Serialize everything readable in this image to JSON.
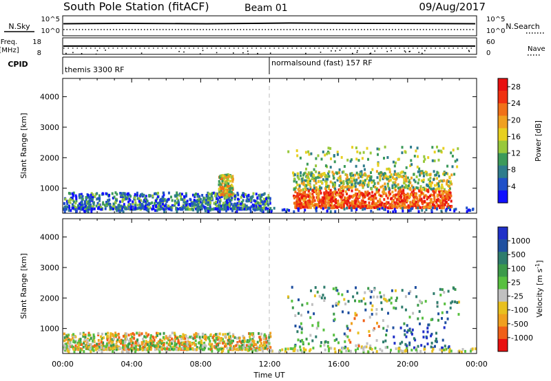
{
  "header": {
    "station": "South Pole Station (fitACF)",
    "beam": "Beam 01",
    "date": "09/Aug/2017"
  },
  "strips": {
    "nsky_label": "N.Sky",
    "nsearch_label": "N.Search",
    "left_ticks": [
      "10^5",
      "10^0"
    ],
    "right_ticks": [
      "10^5",
      "10^0"
    ],
    "freq_label_1": "Freq.",
    "freq_label_2": "[MHz]",
    "freq_ticks": [
      "18",
      "8"
    ],
    "nave_label": "Nave",
    "nave_ticks": [
      "60",
      "0"
    ],
    "cpid_label": "CPID",
    "cpid_1": "themis 3300 RF",
    "cpid_2": "normalsound (fast) 157 RF"
  },
  "chart_data": [
    {
      "type": "heatmap",
      "title": "",
      "ylabel": "Slant Range [km]",
      "xlabel": "",
      "xlim": [
        "00:00",
        "24:00"
      ],
      "ylim": [
        180,
        4600
      ],
      "yticks": [
        "1000",
        "2000",
        "3000",
        "4000"
      ],
      "xticks": [
        "00:00",
        "04:00",
        "08:00",
        "12:00",
        "16:00",
        "20:00",
        "00:00"
      ],
      "colorbar": {
        "label": "Power [dB]",
        "ticks": [
          "4",
          "8",
          "12",
          "16",
          "20",
          "24",
          "28"
        ],
        "range": [
          0,
          30
        ],
        "colors": [
          "#1010ff",
          "#2050c8",
          "#2e7c8c",
          "#3c9a5a",
          "#98c83c",
          "#e8d020",
          "#f0a020",
          "#f07018",
          "#f03010",
          "#e81010"
        ]
      },
      "features": [
        {
          "from": "00:00",
          "to": "12:00",
          "range_km": [
            350,
            900
          ],
          "level": "low-medium"
        },
        {
          "from": "09:00",
          "to": "09:50",
          "range_km": [
            800,
            1500
          ],
          "level": "medium-high"
        },
        {
          "from": "13:20",
          "to": "22:30",
          "range_km": [
            400,
            1600
          ],
          "level": "high"
        }
      ]
    },
    {
      "type": "heatmap",
      "title": "",
      "ylabel": "Slant Range [km]",
      "xlabel": "Time UT",
      "xlim": [
        "00:00",
        "24:00"
      ],
      "ylim": [
        180,
        4600
      ],
      "yticks": [
        "1000",
        "2000",
        "3000",
        "4000"
      ],
      "xticks": [
        "00:00",
        "04:00",
        "08:00",
        "12:00",
        "16:00",
        "20:00",
        "00:00"
      ],
      "colorbar": {
        "label": "Velocity [m s^-1]",
        "ticks": [
          "1000",
          "500",
          "100",
          "25",
          "-25",
          "-100",
          "-500",
          "-1000"
        ],
        "colors": [
          "#2030c8",
          "#2050a0",
          "#2e7c6c",
          "#3c9a4a",
          "#58c040",
          "#c0c0c0",
          "#e8c020",
          "#f0a020",
          "#f06018",
          "#e81010"
        ]
      },
      "features": [
        {
          "from": "00:00",
          "to": "12:00",
          "range_km": [
            350,
            900
          ],
          "sign": "mostly negative"
        },
        {
          "from": "13:20",
          "to": "22:30",
          "range_km": [
            400,
            1600
          ],
          "sign": "mixed, positive near 20:00"
        }
      ]
    }
  ]
}
